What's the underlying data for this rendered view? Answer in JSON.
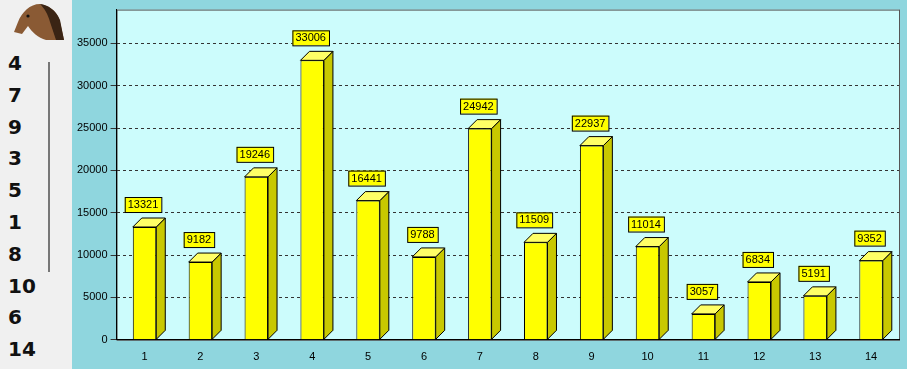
{
  "chart_data": {
    "type": "bar",
    "categories": [
      "1",
      "2",
      "3",
      "4",
      "5",
      "6",
      "7",
      "8",
      "9",
      "10",
      "11",
      "12",
      "13",
      "14"
    ],
    "values": [
      13321,
      9182,
      19246,
      33006,
      16441,
      9788,
      24942,
      11509,
      22937,
      11014,
      3057,
      6834,
      5191,
      9352
    ],
    "color": "#ffff00",
    "ylim": [
      0,
      39000
    ],
    "yticks": [
      0,
      5000,
      10000,
      15000,
      20000,
      25000,
      30000,
      35000
    ],
    "grid": true,
    "data_labels": true
  },
  "side_list": [
    4,
    7,
    9,
    3,
    5,
    1,
    8,
    10,
    6,
    14
  ]
}
